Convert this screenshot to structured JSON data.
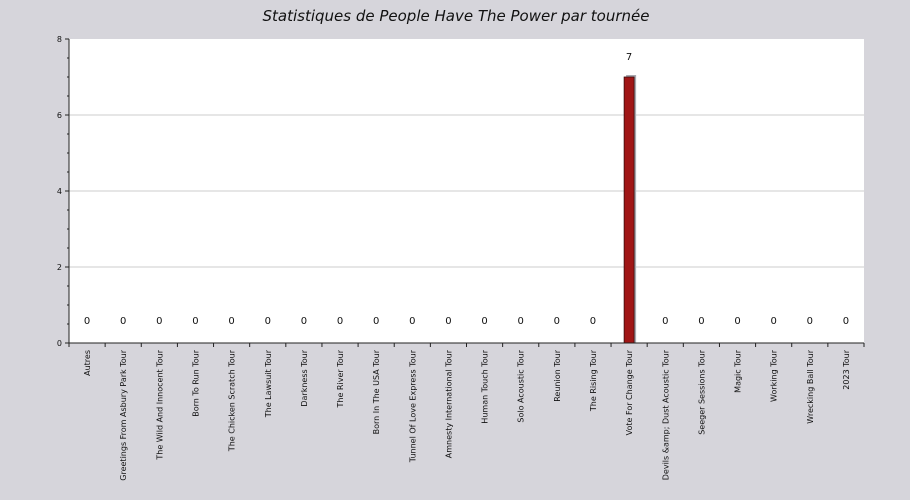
{
  "chart_data": {
    "type": "bar",
    "title": "Statistiques de People Have The Power par tournée",
    "xlabel": "",
    "ylabel": "",
    "ylim": [
      0,
      8
    ],
    "yticks": [
      "0",
      "2",
      "4",
      "6",
      "8"
    ],
    "grid": true,
    "categories": [
      "Autres",
      "Greetings From Asbury Park Tour",
      "The Wild And Innocent Tour",
      "Born To Run Tour",
      "The Chicken Scratch Tour",
      "The Lawsuit Tour",
      "Darkness Tour",
      "The River Tour",
      "Born In The USA Tour",
      "Tunnel Of Love Express Tour",
      "Amnesty International Tour",
      "Human Touch Tour",
      "Solo Acoustic Tour",
      "Reunion Tour",
      "The Rising Tour",
      "Vote For Change Tour",
      "Devils &amp; Dust Acoustic Tour",
      "Seeger Sessions Tour",
      "Magic Tour",
      "Working Tour",
      "Wrecking Ball Tour",
      "2023 Tour"
    ],
    "values": [
      0,
      0,
      0,
      0,
      0,
      0,
      0,
      0,
      0,
      0,
      0,
      0,
      0,
      0,
      0,
      7,
      0,
      0,
      0,
      0,
      0,
      0
    ],
    "value_labels": [
      "0",
      "0",
      "0",
      "0",
      "0",
      "0",
      "0",
      "0",
      "0",
      "0",
      "0",
      "0",
      "0",
      "0",
      "0",
      "7",
      "0",
      "0",
      "0",
      "0",
      "0",
      "0"
    ],
    "colors": {
      "bar": "#a01616",
      "bar_shadow": "#a9a9b0",
      "plot_bg": "#ffffff",
      "page_bg": "#d6d5db",
      "grid": "#cccccc"
    }
  }
}
